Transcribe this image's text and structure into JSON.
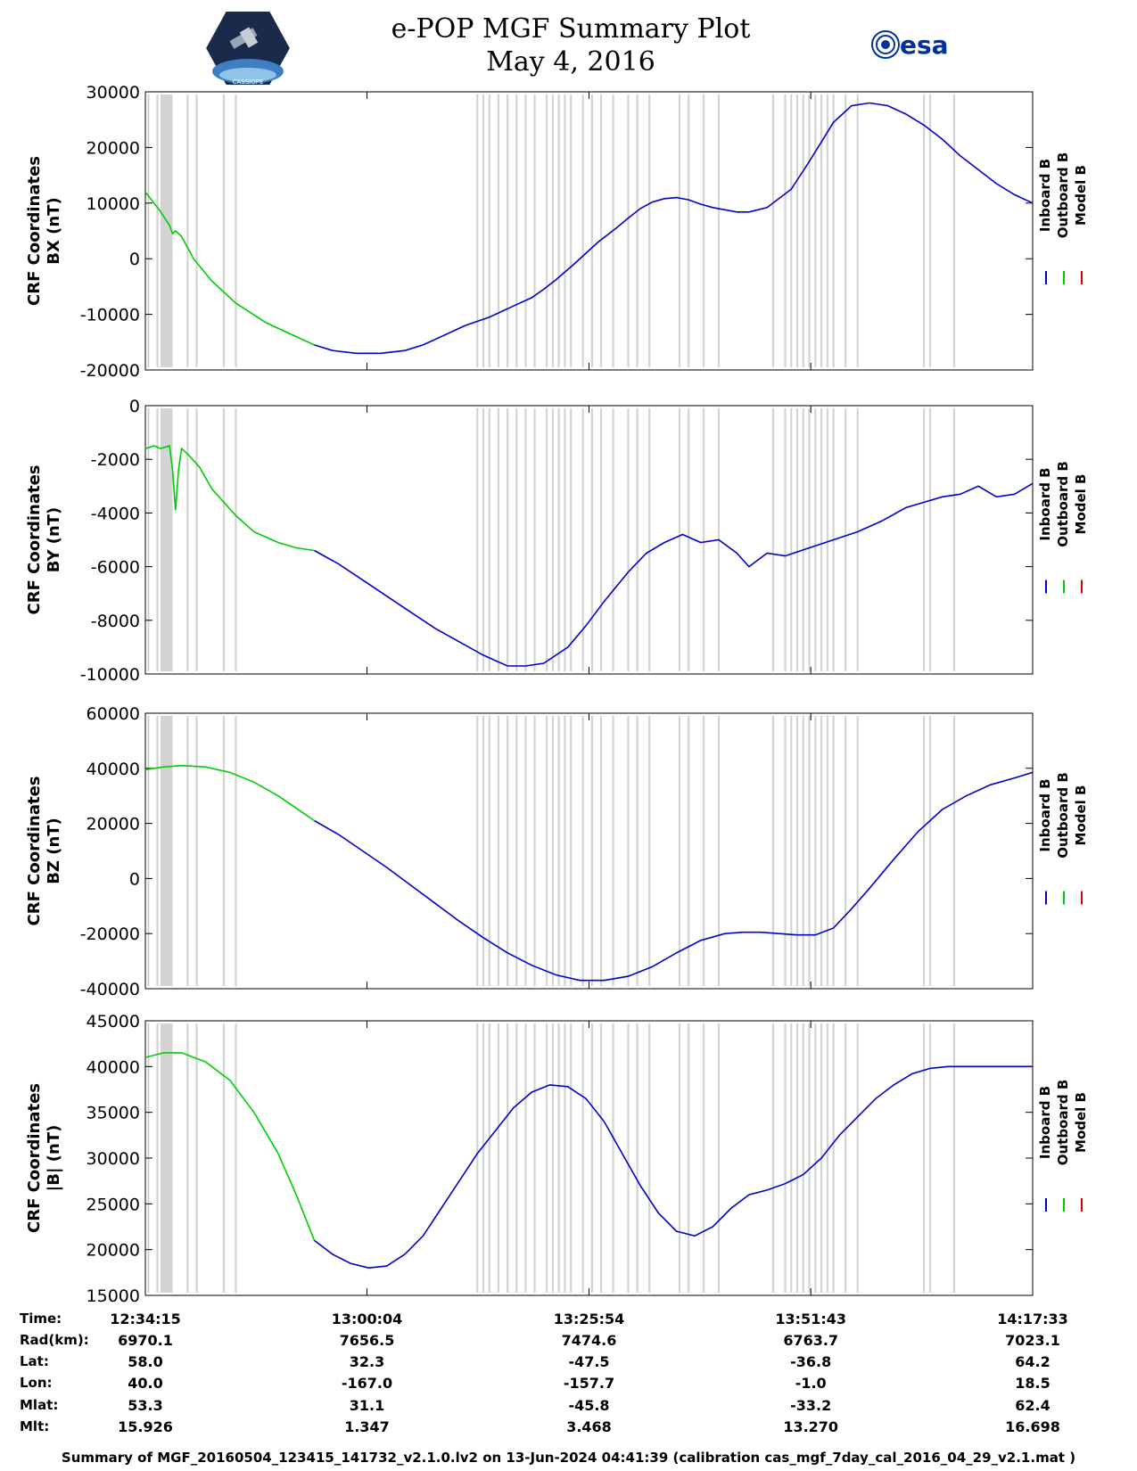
{
  "header": {
    "title": "e-POP MGF Summary Plot",
    "date": "May 4, 2016",
    "logo_left_text": "CASSIOPE",
    "logo_right_text": "esa"
  },
  "colors": {
    "inboard": "#0000cc",
    "outboard": "#00cc00",
    "model": "#dd0000",
    "flag": "#d3d3d3"
  },
  "chart_data": [
    {
      "type": "line",
      "ylabel_line1": "CRF Coordinates",
      "ylabel_line2": "BX (nT)",
      "ylim": [
        -20000,
        30000
      ],
      "yticks": [
        "30000",
        "20000",
        "10000",
        "0",
        "-10000",
        "-20000"
      ],
      "ytick_values": [
        30000,
        20000,
        10000,
        0,
        -10000,
        -20000
      ],
      "legend": [
        "Inboard B",
        "Outboard B",
        "Model B"
      ],
      "series": [
        {
          "name": "Outboard B",
          "x": [
            0,
            5,
            8,
            9,
            10,
            12,
            16,
            22,
            30,
            40,
            50,
            56
          ],
          "values": [
            12000,
            8500,
            6000,
            4500,
            5000,
            4000,
            0,
            -4000,
            -8000,
            -11500,
            -14000,
            -15500
          ]
        },
        {
          "name": "Inboard B",
          "x": [
            56,
            62,
            70,
            78,
            86,
            92,
            98,
            106,
            114,
            122,
            128,
            132,
            136,
            142,
            146,
            150,
            156,
            160,
            164,
            168,
            172,
            176,
            180,
            184,
            188,
            192,
            196,
            200,
            206,
            214,
            220,
            228,
            234,
            240
          ],
          "values": [
            -15500,
            -16500,
            -17000,
            -17000,
            -16500,
            -15500,
            -14000,
            -12000,
            -10500,
            -8500,
            -7000,
            -5500,
            -3800,
            -1000,
            1000,
            3000,
            5500,
            7300,
            9000,
            10200,
            10800,
            11000,
            10600,
            9800,
            9200,
            8800,
            8400,
            8400,
            9200,
            12500,
            17500,
            24500,
            27500,
            28000
          ]
        },
        {
          "name": "Inboard B tail",
          "x": [
            240,
            246,
            252,
            258,
            264,
            270,
            276,
            282,
            288,
            294
          ],
          "values": [
            28000,
            27500,
            26000,
            24000,
            21500,
            18500,
            16000,
            13500,
            11500,
            10000
          ]
        }
      ]
    },
    {
      "type": "line",
      "ylabel_line1": "CRF Coordinates",
      "ylabel_line2": "BY (nT)",
      "ylim": [
        -10000,
        0
      ],
      "yticks": [
        "0",
        "-2000",
        "-4000",
        "-6000",
        "-8000",
        "-10000"
      ],
      "ytick_values": [
        0,
        -2000,
        -4000,
        -6000,
        -8000,
        -10000
      ],
      "legend": [
        "Inboard B",
        "Outboard B",
        "Model B"
      ],
      "series": [
        {
          "name": "Outboard B",
          "x": [
            0,
            3,
            5,
            8,
            9,
            10,
            11,
            12,
            14,
            18,
            22,
            26,
            30,
            36,
            44,
            50,
            56
          ],
          "values": [
            -1600,
            -1500,
            -1600,
            -1500,
            -2400,
            -3900,
            -2400,
            -1600,
            -1800,
            -2300,
            -3100,
            -3600,
            -4100,
            -4700,
            -5100,
            -5300,
            -5400
          ]
        },
        {
          "name": "Inboard B",
          "x": [
            56,
            64,
            72,
            80,
            88,
            96,
            104,
            112,
            116,
            120,
            126,
            132,
            140,
            146,
            152,
            160,
            166,
            172,
            178,
            184,
            190,
            196,
            200,
            206,
            212,
            220,
            228,
            236,
            244,
            252,
            258,
            264,
            270,
            276,
            282,
            288,
            294
          ],
          "values": [
            -5400,
            -5900,
            -6500,
            -7100,
            -7700,
            -8300,
            -8800,
            -9300,
            -9500,
            -9700,
            -9700,
            -9600,
            -9000,
            -8200,
            -7300,
            -6200,
            -5500,
            -5100,
            -4800,
            -5100,
            -5000,
            -5500,
            -6000,
            -5500,
            -5600,
            -5300,
            -5000,
            -4700,
            -4300,
            -3800,
            -3600,
            -3400,
            -3300,
            -3000,
            -3400,
            -3300,
            -2900
          ]
        }
      ]
    },
    {
      "type": "line",
      "ylabel_line1": "CRF Coordinates",
      "ylabel_line2": "BZ (nT)",
      "ylim": [
        -40000,
        60000
      ],
      "yticks": [
        "60000",
        "40000",
        "20000",
        "0",
        "-20000",
        "-40000"
      ],
      "ytick_values": [
        60000,
        40000,
        20000,
        0,
        -20000,
        -40000
      ],
      "legend": [
        "Inboard B",
        "Outboard B",
        "Model B"
      ],
      "series": [
        {
          "name": "Outboard B",
          "x": [
            0,
            6,
            12,
            20,
            28,
            36,
            44,
            52,
            56
          ],
          "values": [
            39500,
            40500,
            41000,
            40500,
            38500,
            35000,
            30000,
            24000,
            21000
          ]
        },
        {
          "name": "Inboard B",
          "x": [
            56,
            64,
            72,
            80,
            88,
            96,
            104,
            112,
            120,
            128,
            136,
            144,
            152,
            160,
            168,
            176,
            184,
            192,
            198,
            204,
            210,
            216,
            222,
            228,
            234,
            240,
            248,
            256,
            264,
            272,
            280,
            288,
            294
          ],
          "values": [
            21000,
            16000,
            10000,
            4000,
            -2500,
            -9000,
            -15500,
            -21500,
            -27000,
            -31500,
            -35000,
            -37000,
            -37000,
            -35500,
            -32000,
            -27000,
            -22500,
            -20000,
            -19500,
            -19500,
            -20000,
            -20500,
            -20500,
            -18000,
            -11000,
            -3500,
            7000,
            17000,
            25000,
            30000,
            34000,
            36500,
            38500
          ]
        }
      ]
    },
    {
      "type": "line",
      "ylabel_line1": "CRF Coordinates",
      "ylabel_line2": "|B| (nT)",
      "ylim": [
        15000,
        45000
      ],
      "yticks": [
        "45000",
        "40000",
        "35000",
        "30000",
        "25000",
        "20000",
        "15000"
      ],
      "ytick_values": [
        45000,
        40000,
        35000,
        30000,
        25000,
        20000,
        15000
      ],
      "legend": [
        "Inboard B",
        "Outboard B",
        "Model B"
      ],
      "series": [
        {
          "name": "Outboard B",
          "x": [
            0,
            6,
            12,
            20,
            28,
            36,
            44,
            50,
            56
          ],
          "values": [
            41000,
            41500,
            41500,
            40500,
            38500,
            35000,
            30500,
            26000,
            21000
          ]
        },
        {
          "name": "Inboard B",
          "x": [
            56,
            62,
            68,
            74,
            80,
            86,
            92,
            98,
            104,
            110,
            116,
            122,
            128,
            134,
            140,
            146,
            152,
            158,
            164,
            170,
            176,
            182,
            188,
            194,
            200,
            206,
            212,
            218,
            224,
            230,
            236,
            242,
            248,
            254,
            260,
            266,
            272,
            278,
            284,
            290,
            294
          ],
          "values": [
            21000,
            19500,
            18500,
            18000,
            18200,
            19500,
            21500,
            24500,
            27500,
            30500,
            33000,
            35500,
            37200,
            38000,
            37800,
            36500,
            34000,
            30500,
            27000,
            24000,
            22000,
            21500,
            22500,
            24500,
            26000,
            26500,
            27200,
            28200,
            30000,
            32500,
            34500,
            36500,
            38000,
            39200,
            39800,
            40000,
            40000,
            40000,
            40000,
            40000,
            40000
          ]
        }
      ]
    }
  ],
  "x_axis": {
    "ticks": [
      "12:34:15",
      "13:00:04",
      "13:25:54",
      "13:51:43",
      "14:17:33"
    ],
    "tick_minutes": [
      0,
      25.8,
      51.65,
      77.47,
      103.3
    ]
  },
  "flags": {
    "thick": [
      [
        5,
        9
      ]
    ],
    "thin": [
      1,
      4,
      14,
      17,
      26,
      30,
      110,
      112,
      114,
      117,
      120,
      123,
      126,
      129,
      133,
      135,
      137,
      139,
      141,
      145,
      148,
      151,
      155,
      160,
      163,
      167,
      177,
      180,
      185,
      190,
      208,
      212,
      214,
      216,
      218,
      220,
      222,
      224,
      226,
      228,
      232,
      236,
      258,
      260,
      268
    ]
  },
  "info": {
    "labels": [
      "Time:",
      "Rad(km):",
      "Lat:",
      "Lon:",
      "Mlat:",
      "Mlt:"
    ],
    "columns": [
      [
        "12:34:15",
        "6970.1",
        "58.0",
        "40.0",
        "53.3",
        "15.926"
      ],
      [
        "13:00:04",
        "7656.5",
        "32.3",
        "-167.0",
        "31.1",
        "1.347"
      ],
      [
        "13:25:54",
        "7474.6",
        "-47.5",
        "-157.7",
        "-45.8",
        "3.468"
      ],
      [
        "13:51:43",
        "6763.7",
        "-36.8",
        "-1.0",
        "-33.2",
        "13.270"
      ],
      [
        "14:17:33",
        "7023.1",
        "64.2",
        "18.5",
        "62.4",
        "16.698"
      ]
    ]
  },
  "footer": "Summary of MGF_20160504_123415_141732_v2.1.0.lv2 on 13-Jun-2024 04:41:39 (calibration cas_mgf_7day_cal_2016_04_29_v2.1.mat )"
}
